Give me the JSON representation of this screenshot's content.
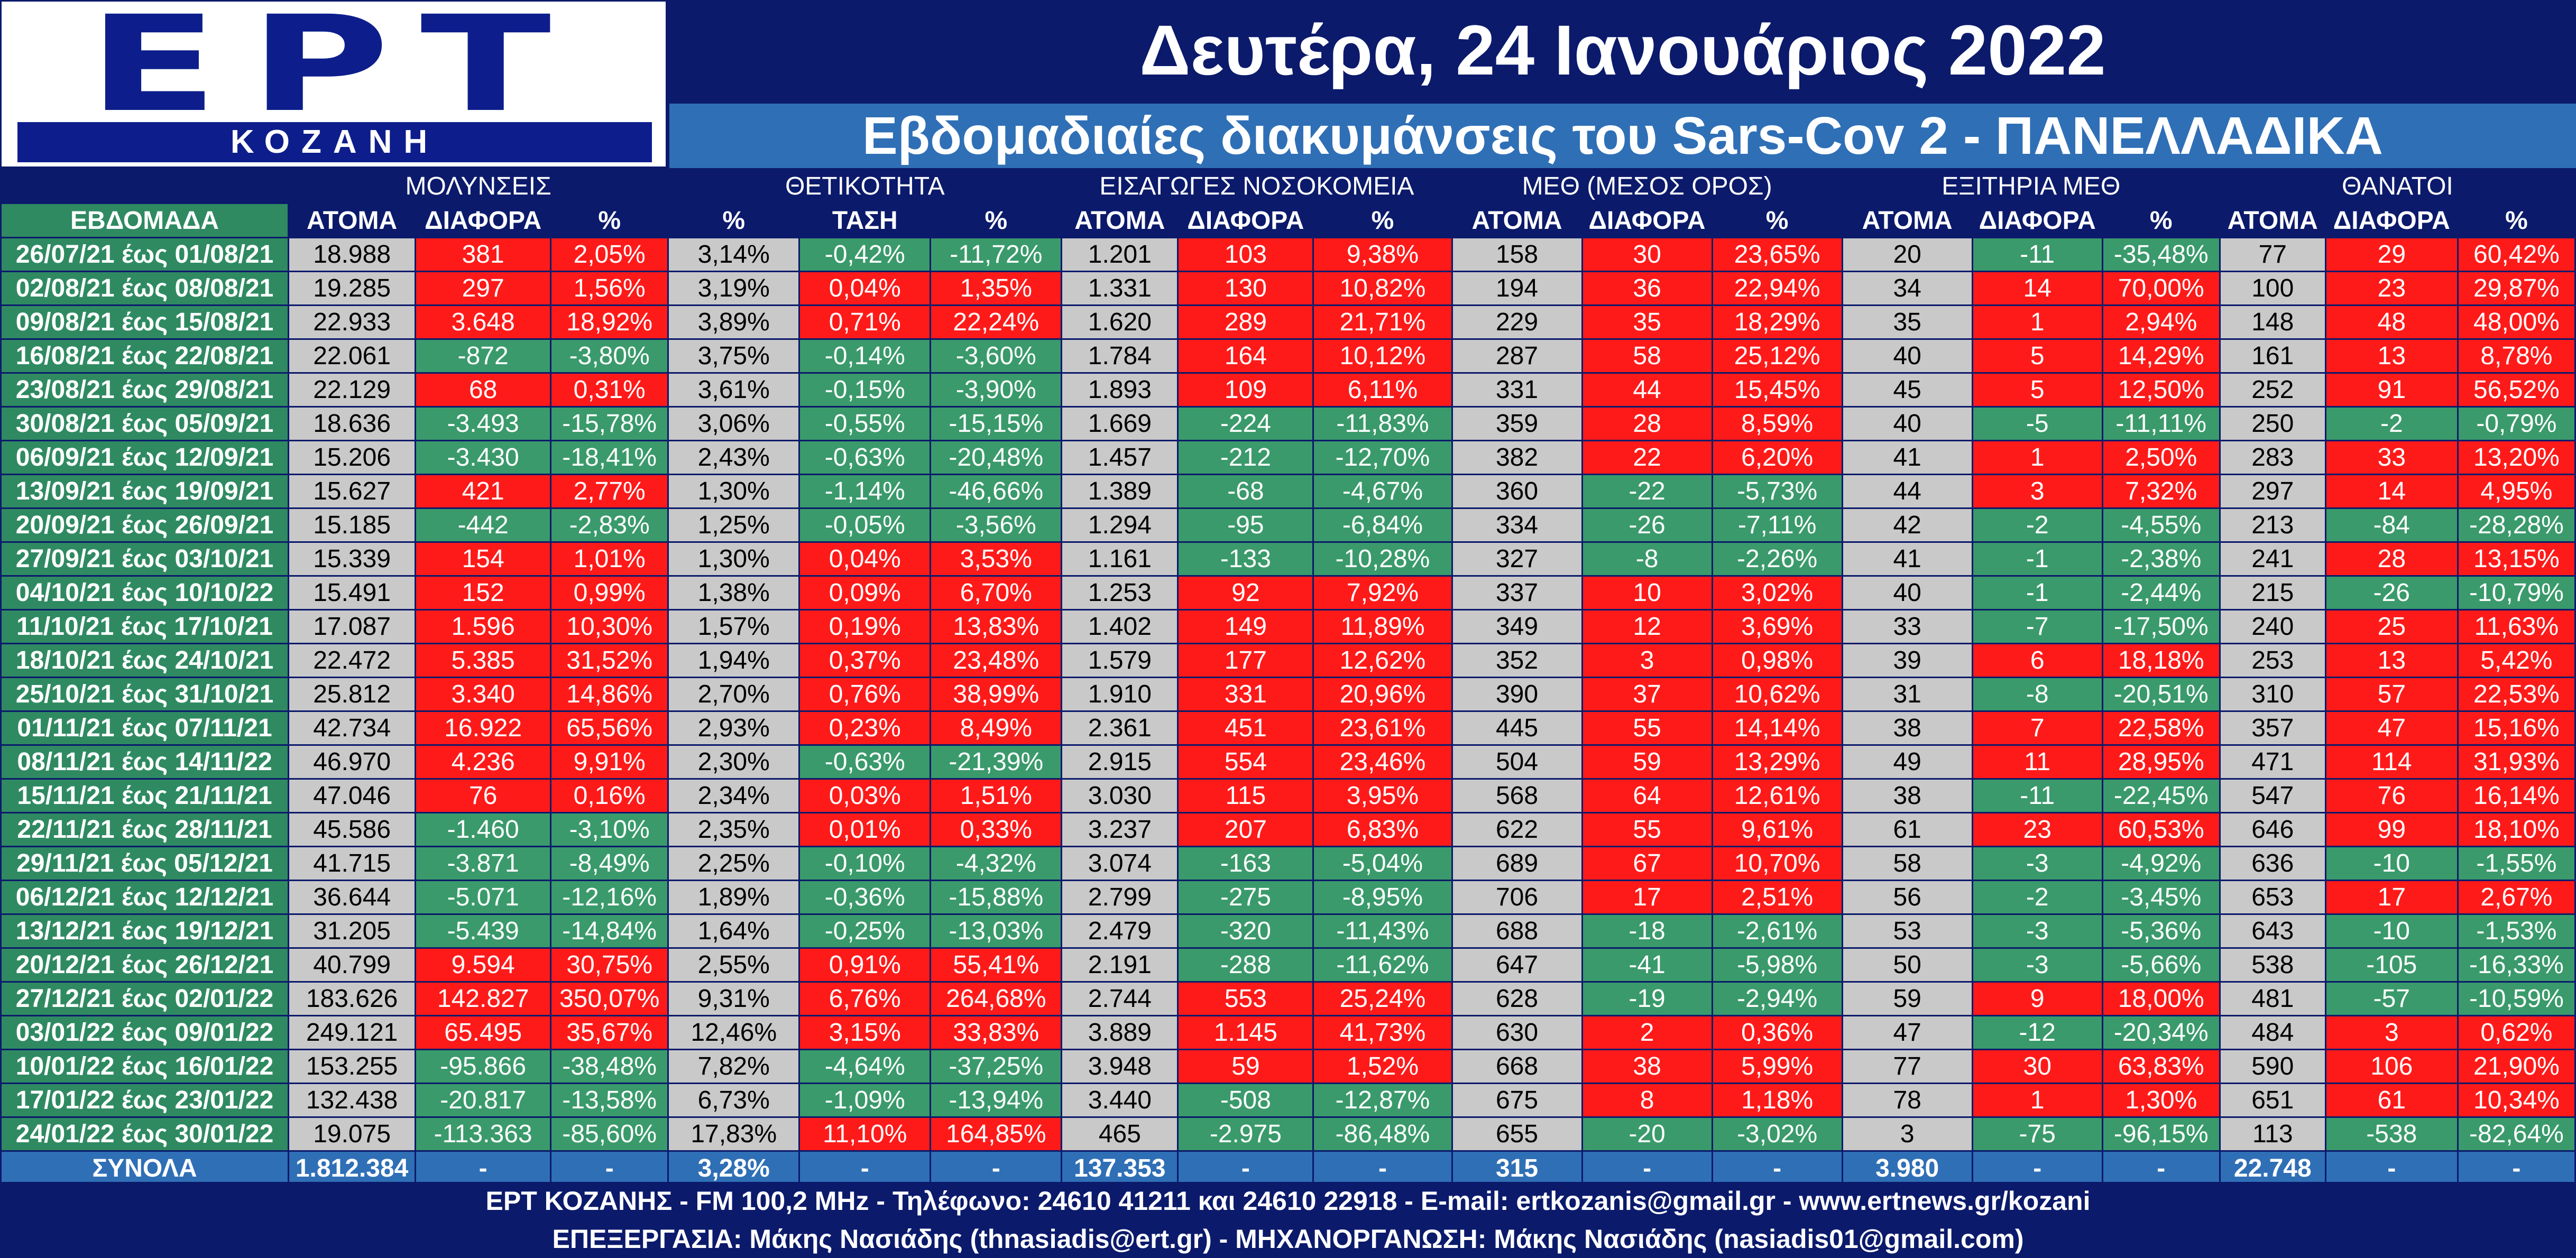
{
  "logo": {
    "main": "ΕΡΤ",
    "sub": "ΚΟΖΑΝΗ"
  },
  "title": "Δευτέρα, 24 Ιανουάριος 2022",
  "subtitle": "Εβδομαδιαίες διακυμάνσεις του Sars-Cov 2 - ΠΑΝΕΛΛΑΔΙΚΑ",
  "groups": [
    "ΜΟΛΥΝΣΕΙΣ",
    "ΘΕΤΙΚΟΤΗΤΑ",
    "ΕΙΣΑΓΩΓΕΣ ΝΟΣΟΚΟΜΕΙΑ",
    "ΜΕΘ (ΜΕΣΟΣ ΟΡΟΣ)",
    "ΕΞΙΤΗΡΙΑ ΜΕΘ",
    "ΘΑΝΑΤΟΙ"
  ],
  "headers": [
    "ΕΒΔΟΜΑΔΑ",
    "ΑΤΟΜΑ",
    "ΔΙΑΦΟΡΑ",
    "%",
    "%",
    "ΤΑΣΗ",
    "%",
    "ΑΤΟΜΑ",
    "ΔΙΑΦΟΡΑ",
    "%",
    "ΑΤΟΜΑ",
    "ΔΙΑΦΟΡΑ",
    "%",
    "ΑΤΟΜΑ",
    "ΔΙΑΦΟΡΑ",
    "%",
    "ΑΤΟΜΑ",
    "ΔΙΑΦΟΡΑ",
    "%"
  ],
  "colors": {
    "navy": "#0b1a6b",
    "blue": "#2f6fb6",
    "green": "#3a9a6b",
    "red": "#ff1a1a",
    "gray": "#c9c9c9"
  },
  "rows": [
    [
      "26/07/21 έως 01/08/21",
      "18.988",
      "381",
      "2,05%",
      "3,14%",
      "-0,42%",
      "-11,72%",
      "1.201",
      "103",
      "9,38%",
      "158",
      "30",
      "23,65%",
      "20",
      "-11",
      "-35,48%",
      "77",
      "29",
      "60,42%"
    ],
    [
      "02/08/21 έως 08/08/21",
      "19.285",
      "297",
      "1,56%",
      "3,19%",
      "0,04%",
      "1,35%",
      "1.331",
      "130",
      "10,82%",
      "194",
      "36",
      "22,94%",
      "34",
      "14",
      "70,00%",
      "100",
      "23",
      "29,87%"
    ],
    [
      "09/08/21 έως 15/08/21",
      "22.933",
      "3.648",
      "18,92%",
      "3,89%",
      "0,71%",
      "22,24%",
      "1.620",
      "289",
      "21,71%",
      "229",
      "35",
      "18,29%",
      "35",
      "1",
      "2,94%",
      "148",
      "48",
      "48,00%"
    ],
    [
      "16/08/21 έως 22/08/21",
      "22.061",
      "-872",
      "-3,80%",
      "3,75%",
      "-0,14%",
      "-3,60%",
      "1.784",
      "164",
      "10,12%",
      "287",
      "58",
      "25,12%",
      "40",
      "5",
      "14,29%",
      "161",
      "13",
      "8,78%"
    ],
    [
      "23/08/21 έως 29/08/21",
      "22.129",
      "68",
      "0,31%",
      "3,61%",
      "-0,15%",
      "-3,90%",
      "1.893",
      "109",
      "6,11%",
      "331",
      "44",
      "15,45%",
      "45",
      "5",
      "12,50%",
      "252",
      "91",
      "56,52%"
    ],
    [
      "30/08/21 έως 05/09/21",
      "18.636",
      "-3.493",
      "-15,78%",
      "3,06%",
      "-0,55%",
      "-15,15%",
      "1.669",
      "-224",
      "-11,83%",
      "359",
      "28",
      "8,59%",
      "40",
      "-5",
      "-11,11%",
      "250",
      "-2",
      "-0,79%"
    ],
    [
      "06/09/21 έως 12/09/21",
      "15.206",
      "-3.430",
      "-18,41%",
      "2,43%",
      "-0,63%",
      "-20,48%",
      "1.457",
      "-212",
      "-12,70%",
      "382",
      "22",
      "6,20%",
      "41",
      "1",
      "2,50%",
      "283",
      "33",
      "13,20%"
    ],
    [
      "13/09/21 έως 19/09/21",
      "15.627",
      "421",
      "2,77%",
      "1,30%",
      "-1,14%",
      "-46,66%",
      "1.389",
      "-68",
      "-4,67%",
      "360",
      "-22",
      "-5,73%",
      "44",
      "3",
      "7,32%",
      "297",
      "14",
      "4,95%"
    ],
    [
      "20/09/21 έως 26/09/21",
      "15.185",
      "-442",
      "-2,83%",
      "1,25%",
      "-0,05%",
      "-3,56%",
      "1.294",
      "-95",
      "-6,84%",
      "334",
      "-26",
      "-7,11%",
      "42",
      "-2",
      "-4,55%",
      "213",
      "-84",
      "-28,28%"
    ],
    [
      "27/09/21 έως 03/10/21",
      "15.339",
      "154",
      "1,01%",
      "1,30%",
      "0,04%",
      "3,53%",
      "1.161",
      "-133",
      "-10,28%",
      "327",
      "-8",
      "-2,26%",
      "41",
      "-1",
      "-2,38%",
      "241",
      "28",
      "13,15%"
    ],
    [
      "04/10/21 έως 10/10/22",
      "15.491",
      "152",
      "0,99%",
      "1,38%",
      "0,09%",
      "6,70%",
      "1.253",
      "92",
      "7,92%",
      "337",
      "10",
      "3,02%",
      "40",
      "-1",
      "-2,44%",
      "215",
      "-26",
      "-10,79%"
    ],
    [
      "11/10/21 έως 17/10/21",
      "17.087",
      "1.596",
      "10,30%",
      "1,57%",
      "0,19%",
      "13,83%",
      "1.402",
      "149",
      "11,89%",
      "349",
      "12",
      "3,69%",
      "33",
      "-7",
      "-17,50%",
      "240",
      "25",
      "11,63%"
    ],
    [
      "18/10/21 έως 24/10/21",
      "22.472",
      "5.385",
      "31,52%",
      "1,94%",
      "0,37%",
      "23,48%",
      "1.579",
      "177",
      "12,62%",
      "352",
      "3",
      "0,98%",
      "39",
      "6",
      "18,18%",
      "253",
      "13",
      "5,42%"
    ],
    [
      "25/10/21 έως 31/10/21",
      "25.812",
      "3.340",
      "14,86%",
      "2,70%",
      "0,76%",
      "38,99%",
      "1.910",
      "331",
      "20,96%",
      "390",
      "37",
      "10,62%",
      "31",
      "-8",
      "-20,51%",
      "310",
      "57",
      "22,53%"
    ],
    [
      "01/11/21 έως 07/11/21",
      "42.734",
      "16.922",
      "65,56%",
      "2,93%",
      "0,23%",
      "8,49%",
      "2.361",
      "451",
      "23,61%",
      "445",
      "55",
      "14,14%",
      "38",
      "7",
      "22,58%",
      "357",
      "47",
      "15,16%"
    ],
    [
      "08/11/21 έως 14/11/22",
      "46.970",
      "4.236",
      "9,91%",
      "2,30%",
      "-0,63%",
      "-21,39%",
      "2.915",
      "554",
      "23,46%",
      "504",
      "59",
      "13,29%",
      "49",
      "11",
      "28,95%",
      "471",
      "114",
      "31,93%"
    ],
    [
      "15/11/21 έως 21/11/21",
      "47.046",
      "76",
      "0,16%",
      "2,34%",
      "0,03%",
      "1,51%",
      "3.030",
      "115",
      "3,95%",
      "568",
      "64",
      "12,61%",
      "38",
      "-11",
      "-22,45%",
      "547",
      "76",
      "16,14%"
    ],
    [
      "22/11/21 έως 28/11/21",
      "45.586",
      "-1.460",
      "-3,10%",
      "2,35%",
      "0,01%",
      "0,33%",
      "3.237",
      "207",
      "6,83%",
      "622",
      "55",
      "9,61%",
      "61",
      "23",
      "60,53%",
      "646",
      "99",
      "18,10%"
    ],
    [
      "29/11/21 έως 05/12/21",
      "41.715",
      "-3.871",
      "-8,49%",
      "2,25%",
      "-0,10%",
      "-4,32%",
      "3.074",
      "-163",
      "-5,04%",
      "689",
      "67",
      "10,70%",
      "58",
      "-3",
      "-4,92%",
      "636",
      "-10",
      "-1,55%"
    ],
    [
      "06/12/21 έως 12/12/21",
      "36.644",
      "-5.071",
      "-12,16%",
      "1,89%",
      "-0,36%",
      "-15,88%",
      "2.799",
      "-275",
      "-8,95%",
      "706",
      "17",
      "2,51%",
      "56",
      "-2",
      "-3,45%",
      "653",
      "17",
      "2,67%"
    ],
    [
      "13/12/21 έως 19/12/21",
      "31.205",
      "-5.439",
      "-14,84%",
      "1,64%",
      "-0,25%",
      "-13,03%",
      "2.479",
      "-320",
      "-11,43%",
      "688",
      "-18",
      "-2,61%",
      "53",
      "-3",
      "-5,36%",
      "643",
      "-10",
      "-1,53%"
    ],
    [
      "20/12/21 έως 26/12/21",
      "40.799",
      "9.594",
      "30,75%",
      "2,55%",
      "0,91%",
      "55,41%",
      "2.191",
      "-288",
      "-11,62%",
      "647",
      "-41",
      "-5,98%",
      "50",
      "-3",
      "-5,66%",
      "538",
      "-105",
      "-16,33%"
    ],
    [
      "27/12/21 έως 02/01/22",
      "183.626",
      "142.827",
      "350,07%",
      "9,31%",
      "6,76%",
      "264,68%",
      "2.744",
      "553",
      "25,24%",
      "628",
      "-19",
      "-2,94%",
      "59",
      "9",
      "18,00%",
      "481",
      "-57",
      "-10,59%"
    ],
    [
      "03/01/22 έως 09/01/22",
      "249.121",
      "65.495",
      "35,67%",
      "12,46%",
      "3,15%",
      "33,83%",
      "3.889",
      "1.145",
      "41,73%",
      "630",
      "2",
      "0,36%",
      "47",
      "-12",
      "-20,34%",
      "484",
      "3",
      "0,62%"
    ],
    [
      "10/01/22 έως 16/01/22",
      "153.255",
      "-95.866",
      "-38,48%",
      "7,82%",
      "-4,64%",
      "-37,25%",
      "3.948",
      "59",
      "1,52%",
      "668",
      "38",
      "5,99%",
      "77",
      "30",
      "63,83%",
      "590",
      "106",
      "21,90%"
    ],
    [
      "17/01/22 έως 23/01/22",
      "132.438",
      "-20.817",
      "-13,58%",
      "6,73%",
      "-1,09%",
      "-13,94%",
      "3.440",
      "-508",
      "-12,87%",
      "675",
      "8",
      "1,18%",
      "78",
      "1",
      "1,30%",
      "651",
      "61",
      "10,34%"
    ],
    [
      "24/01/22 έως 30/01/22",
      "19.075",
      "-113.363",
      "-85,60%",
      "17,83%",
      "11,10%",
      "164,85%",
      "465",
      "-2.975",
      "-86,48%",
      "655",
      "-20",
      "-3,02%",
      "3",
      "-75",
      "-96,15%",
      "113",
      "-538",
      "-82,64%"
    ]
  ],
  "totals": [
    "ΣΥΝΟΛΑ",
    "1.812.384",
    "-",
    "-",
    "3,28%",
    "-",
    "-",
    "137.353",
    "-",
    "-",
    "315",
    "-",
    "-",
    "3.980",
    "-",
    "-",
    "22.748",
    "-",
    "-"
  ],
  "footer": {
    "line1": "ΕΡΤ ΚΟΖΑΝΗΣ - FM 100,2 MHz - Τηλέφωνο:  24610 41211 και 24610 22918 - E-mail: ertkozanis@gmail.gr - www.ertnews.gr/kozani",
    "line2": "ΕΠΕΞΕΡΓΑΣΙΑ: Μάκης Νασιάδης (thnasiadis@ert.gr) - ΜΗΧΑΝΟΡΓΑΝΩΣΗ: Μάκης Νασιάδης (nasiadis01@gmail.com)"
  }
}
